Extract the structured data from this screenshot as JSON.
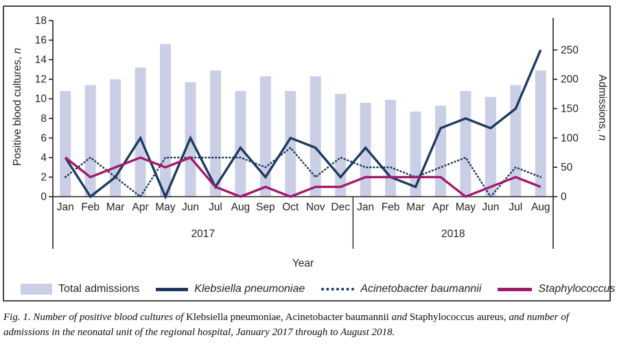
{
  "chart_data": {
    "type": "combo-bar-line",
    "categories": [
      "Jan",
      "Feb",
      "Mar",
      "Apr",
      "May",
      "Jun",
      "Jul",
      "Aug",
      "Sep",
      "Oct",
      "Nov",
      "Dec",
      "Jan",
      "Feb",
      "Mar",
      "Apr",
      "May",
      "Jun",
      "Jul",
      "Aug"
    ],
    "year_groups": [
      {
        "label": "2017",
        "months": 12
      },
      {
        "label": "2018",
        "months": 8
      }
    ],
    "xlabel": "Year",
    "left_axis": {
      "label_main": "Positive blood cultures, ",
      "label_italic": "n",
      "min": 0,
      "max": 18,
      "step": 2
    },
    "right_axis": {
      "label_main": "Admissions, ",
      "label_italic": "n",
      "min": 0,
      "max": 300,
      "ticks": [
        0,
        50,
        100,
        150,
        200,
        250
      ]
    },
    "grid": "off",
    "legend_position": "bottom",
    "series": [
      {
        "name": "Total admissions",
        "type": "bar",
        "axis": "right",
        "color": "#cacfe5",
        "values": [
          180,
          190,
          200,
          220,
          260,
          195,
          215,
          180,
          205,
          180,
          205,
          175,
          160,
          165,
          145,
          155,
          180,
          170,
          190,
          215
        ]
      },
      {
        "name": "Klebsiella pneumoniae",
        "type": "line",
        "axis": "left",
        "color": "#1d3a5e",
        "values": [
          4,
          0,
          2,
          6,
          0,
          6,
          1,
          5,
          2,
          6,
          5,
          2,
          5,
          2,
          1,
          7,
          8,
          7,
          9,
          15
        ]
      },
      {
        "name": "Acinetobacter baumannii",
        "type": "dotted-line",
        "axis": "left",
        "color": "#1d3a5e",
        "values": [
          2,
          4,
          2,
          0,
          4,
          4,
          4,
          4,
          3,
          5,
          2,
          4,
          3,
          3,
          2,
          3,
          4,
          0,
          3,
          2
        ]
      },
      {
        "name": "Staphylococcus aureus",
        "type": "line",
        "axis": "left",
        "color": "#a21a6b",
        "values": [
          4,
          2,
          3,
          4,
          3,
          4,
          1,
          0,
          1,
          0,
          1,
          1,
          2,
          2,
          2,
          2,
          0,
          1,
          2,
          1
        ]
      }
    ]
  },
  "legend": {
    "items": [
      {
        "label": "Total admissions",
        "swatch": "bar",
        "italic": false
      },
      {
        "label": "Klebsiella pneumoniae",
        "swatch": "line",
        "italic": true
      },
      {
        "label": "Acinetobacter baumannii",
        "swatch": "dotted",
        "italic": true
      },
      {
        "label": "Staphylococcus aureus",
        "swatch": "magenta-line",
        "italic": true
      }
    ]
  },
  "caption": {
    "segments": [
      {
        "text": "Fig. 1. Number of positive blood cultures of ",
        "italic": true
      },
      {
        "text": "Klebsiella pneumoniae, Acinetobacter baumannii ",
        "italic": false
      },
      {
        "text": "and ",
        "italic": true
      },
      {
        "text": "Staphylococcus aureus, ",
        "italic": false
      },
      {
        "text": "and number of admissions in the neonatal unit of the regional hospital, January 2017 through to August 2018.",
        "italic": true
      }
    ]
  },
  "colors": {
    "bar": "#cacfe5",
    "navy": "#1d3a5e",
    "magenta": "#a21a6b",
    "text": "#231f20",
    "frame": "#454545"
  }
}
